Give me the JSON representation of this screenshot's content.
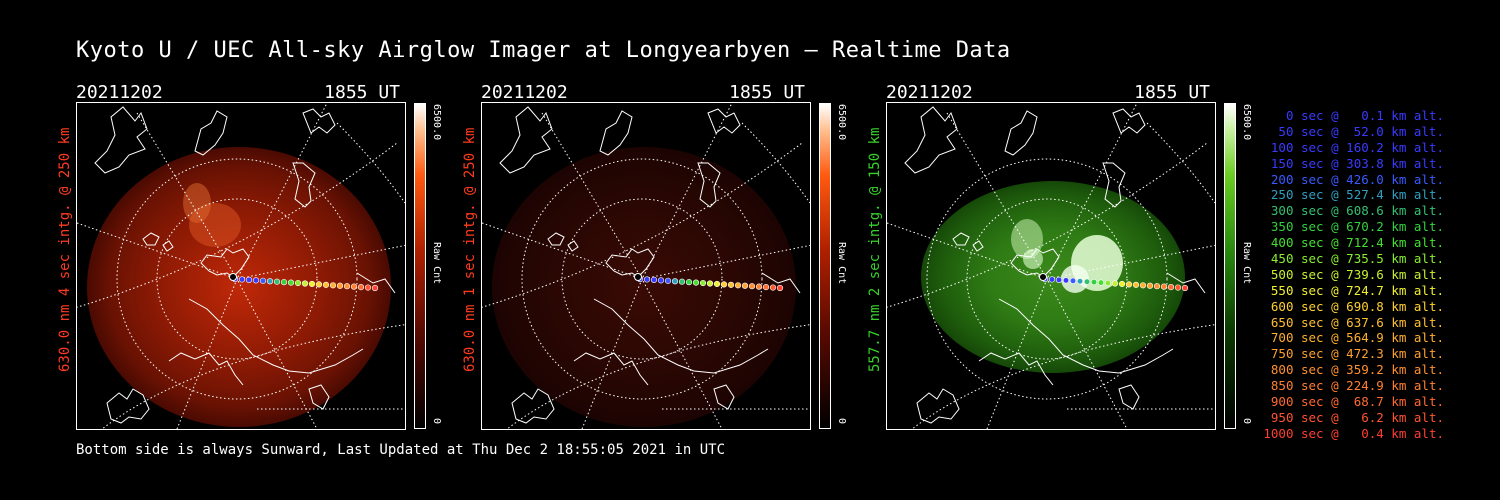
{
  "title": "Kyoto U / UEC All-sky Airglow Imager at Longyearbyen — Realtime Data",
  "panels": [
    {
      "date": "20211202",
      "time": "1855 UT",
      "ylabel": "630.0 nm 4 sec intg. @ 250 km",
      "ylabel_color": "#ff3b1f",
      "cbar_max": "6500.0",
      "cbar_unit": "Raw Cnt",
      "cbar_min": "0",
      "cmap": "red"
    },
    {
      "date": "20211202",
      "time": "1855 UT",
      "ylabel": "630.0 nm 1 sec intg. @ 250 km",
      "ylabel_color": "#ff3b1f",
      "cbar_max": "6500.0",
      "cbar_unit": "Raw Cnt",
      "cbar_min": "0",
      "cmap": "red"
    },
    {
      "date": "20211202",
      "time": "1855 UT",
      "ylabel": "557.7 nm 2 sec intg. @ 150 km",
      "ylabel_color": "#37d22a",
      "cbar_max": "6500.0",
      "cbar_unit": "Raw Cnt",
      "cbar_min": "0",
      "cmap": "green"
    }
  ],
  "trajectory_legend": [
    {
      "text": "0 sec @   0.1 km alt.",
      "color": "#3a3aff"
    },
    {
      "text": "50 sec @  52.0 km alt.",
      "color": "#3a3aff"
    },
    {
      "text": "100 sec @ 160.2 km alt.",
      "color": "#3a3aff"
    },
    {
      "text": "150 sec @ 303.8 km alt.",
      "color": "#3a3aff"
    },
    {
      "text": "200 sec @ 426.0 km alt.",
      "color": "#3a5aff"
    },
    {
      "text": "250 sec @ 527.4 km alt.",
      "color": "#2fa0c0"
    },
    {
      "text": "300 sec @ 608.6 km alt.",
      "color": "#33c070"
    },
    {
      "text": "350 sec @ 670.2 km alt.",
      "color": "#33d040"
    },
    {
      "text": "400 sec @ 712.4 km alt.",
      "color": "#44e030"
    },
    {
      "text": "450 sec @ 735.5 km alt.",
      "color": "#88ee30"
    },
    {
      "text": "500 sec @ 739.6 km alt.",
      "color": "#c8f030"
    },
    {
      "text": "550 sec @ 724.7 km alt.",
      "color": "#f0f030"
    },
    {
      "text": "600 sec @ 690.8 km alt.",
      "color": "#ffd030"
    },
    {
      "text": "650 sec @ 637.6 km alt.",
      "color": "#ffc030"
    },
    {
      "text": "700 sec @ 564.9 km alt.",
      "color": "#ffb030"
    },
    {
      "text": "750 sec @ 472.3 km alt.",
      "color": "#ffa030"
    },
    {
      "text": "800 sec @ 359.2 km alt.",
      "color": "#ff9030"
    },
    {
      "text": "850 sec @ 224.9 km alt.",
      "color": "#ff8030"
    },
    {
      "text": "900 sec @  68.7 km alt.",
      "color": "#ff6a30"
    },
    {
      "text": "950 sec @   6.2 km alt.",
      "color": "#ff5530"
    },
    {
      "text": "1000 sec @   0.4 km alt.",
      "color": "#ff4030"
    }
  ],
  "footer": "Bottom side is always Sunward, Last Updated at Thu Dec  2 18:55:05 2021 in UTC"
}
